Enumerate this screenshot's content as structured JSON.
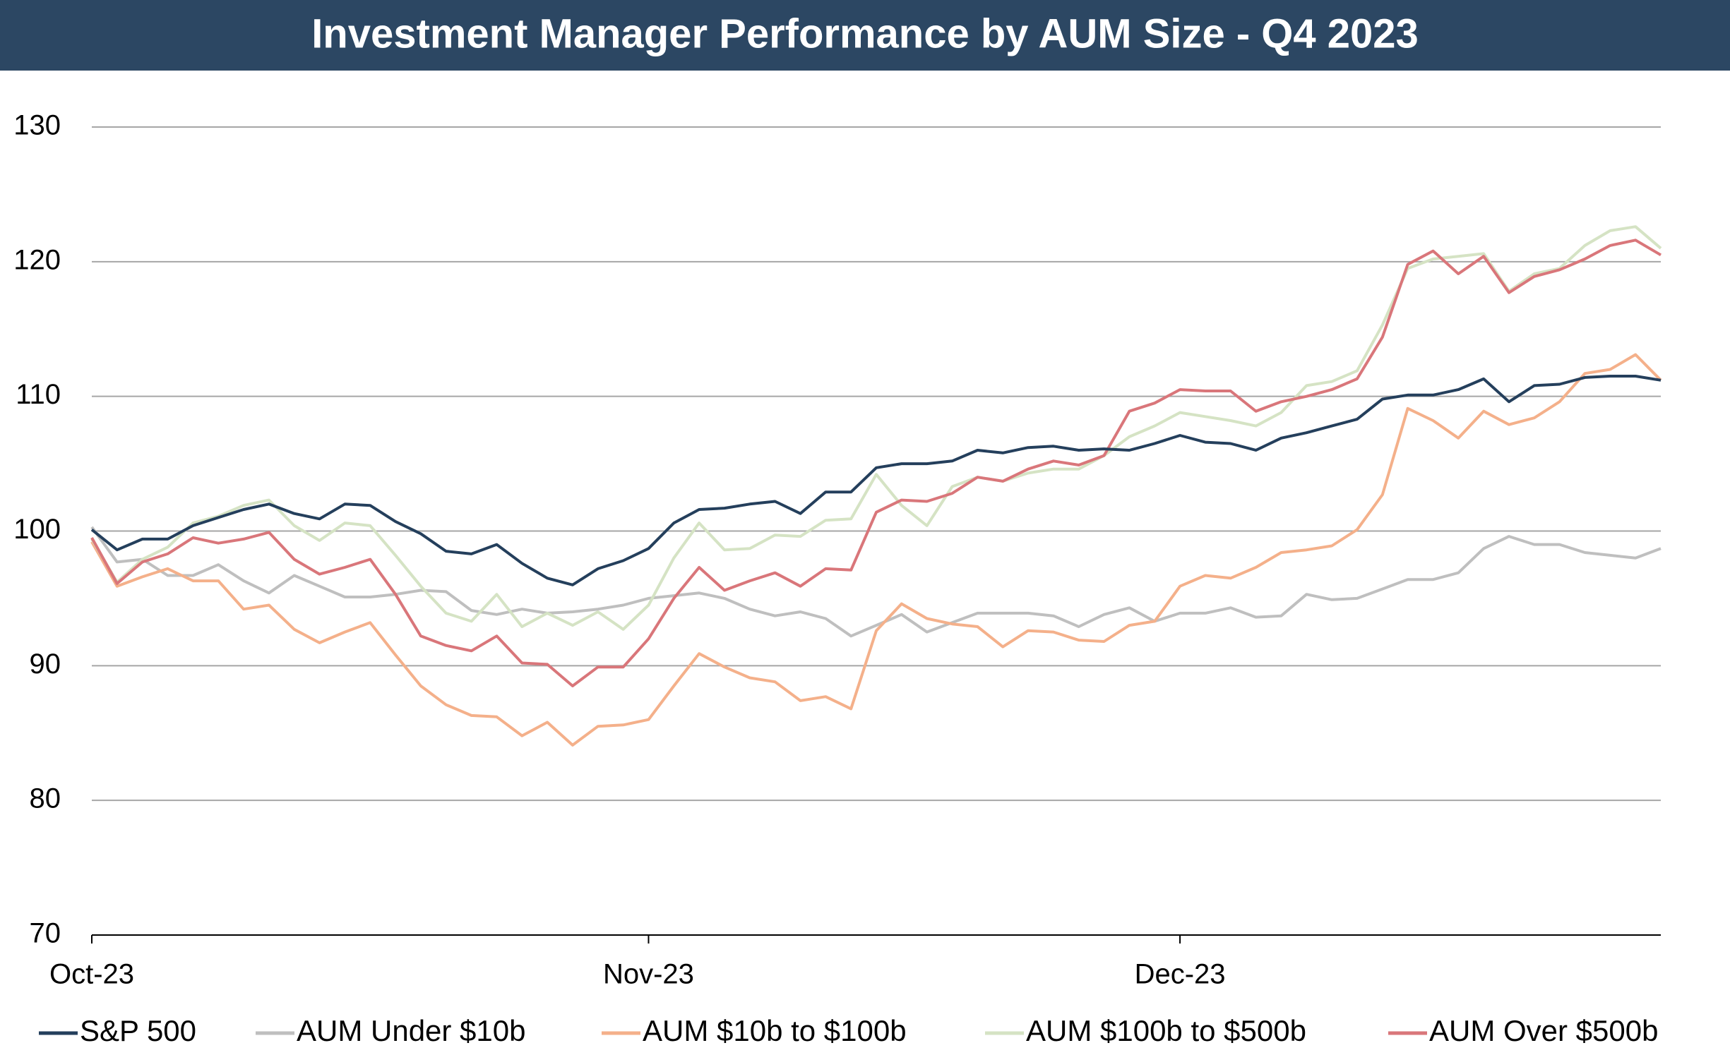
{
  "chart_data": {
    "type": "line",
    "title": "Investment Manager Performance by AUM Size - Q4 2023",
    "categories": [
      "Oct-23",
      null,
      null,
      null,
      null,
      null,
      null,
      null,
      null,
      null,
      null,
      null,
      null,
      null,
      null,
      null,
      null,
      null,
      null,
      null,
      null,
      null,
      "Nov-23",
      null,
      null,
      null,
      null,
      null,
      null,
      null,
      null,
      null,
      null,
      null,
      null,
      null,
      null,
      null,
      null,
      null,
      null,
      null,
      null,
      "Dec-23",
      null,
      null,
      null,
      null,
      null,
      null,
      null,
      null,
      null,
      null,
      null,
      null,
      null,
      null,
      null,
      null,
      null,
      null,
      null
    ],
    "series": [
      {
        "name": "S&P 500",
        "color": "#243f5c",
        "values": [
          100.1,
          98.6,
          99.4,
          99.4,
          100.4,
          101.0,
          101.6,
          102.0,
          101.3,
          100.9,
          102.0,
          101.9,
          100.7,
          99.8,
          98.5,
          98.3,
          99.0,
          97.6,
          96.5,
          96.0,
          97.2,
          97.8,
          98.7,
          100.6,
          101.6,
          101.7,
          102.0,
          102.2,
          101.3,
          102.9,
          102.9,
          104.7,
          105.0,
          105.0,
          105.2,
          106.0,
          105.8,
          106.2,
          106.3,
          106.0,
          106.1,
          106.0,
          106.5,
          107.1,
          106.6,
          106.5,
          106.0,
          106.9,
          107.3,
          107.8,
          108.3,
          109.8,
          110.1,
          110.1,
          110.5,
          111.3,
          109.6,
          110.8,
          110.9,
          111.4,
          111.5,
          111.5,
          111.2
        ]
      },
      {
        "name": "AUM Under $10b",
        "color": "#bfbfbf",
        "values": [
          100.3,
          97.7,
          97.9,
          96.7,
          96.7,
          97.5,
          96.3,
          95.4,
          96.7,
          95.9,
          95.1,
          95.1,
          95.3,
          95.6,
          95.5,
          94.1,
          93.8,
          94.2,
          93.9,
          94.0,
          94.2,
          94.5,
          95.0,
          95.2,
          95.4,
          95.0,
          94.2,
          93.7,
          94.0,
          93.5,
          92.2,
          93.0,
          93.8,
          92.5,
          93.2,
          93.9,
          93.9,
          93.9,
          93.7,
          92.9,
          93.8,
          94.3,
          93.3,
          93.9,
          93.9,
          94.3,
          93.6,
          93.7,
          95.3,
          94.9,
          95.0,
          95.7,
          96.4,
          96.4,
          96.9,
          98.7,
          99.6,
          99.0,
          99.0,
          98.4,
          98.2,
          98.0,
          98.7
        ]
      },
      {
        "name": "AUM $10b to $100b",
        "color": "#f4b08a",
        "values": [
          99.2,
          95.9,
          96.6,
          97.2,
          96.3,
          96.3,
          94.2,
          94.5,
          92.7,
          91.7,
          92.5,
          93.2,
          90.8,
          88.5,
          87.1,
          86.3,
          86.2,
          84.8,
          85.8,
          84.1,
          85.5,
          85.6,
          86.0,
          88.5,
          90.9,
          89.9,
          89.1,
          88.8,
          87.4,
          87.7,
          86.8,
          92.6,
          94.6,
          93.5,
          93.1,
          92.9,
          91.4,
          92.6,
          92.5,
          91.9,
          91.8,
          93.0,
          93.3,
          95.9,
          96.7,
          96.5,
          97.3,
          98.4,
          98.6,
          98.9,
          100.1,
          102.7,
          109.1,
          108.2,
          106.9,
          108.9,
          107.9,
          108.4,
          109.6,
          111.7,
          112.0,
          113.1,
          111.2
        ]
      },
      {
        "name": "AUM $100b to $500b",
        "color": "#d5e3c4",
        "values": [
          99.4,
          96.2,
          97.9,
          98.8,
          100.6,
          101.1,
          101.9,
          102.3,
          100.4,
          99.3,
          100.6,
          100.4,
          98.2,
          95.9,
          93.9,
          93.3,
          95.3,
          92.9,
          93.9,
          93.0,
          94.0,
          92.7,
          94.5,
          98.0,
          100.6,
          98.6,
          98.7,
          99.7,
          99.6,
          100.8,
          100.9,
          104.2,
          101.9,
          100.4,
          103.3,
          104.0,
          103.7,
          104.3,
          104.6,
          104.6,
          105.6,
          107.0,
          107.8,
          108.8,
          108.5,
          108.2,
          107.8,
          108.8,
          110.8,
          111.1,
          111.9,
          115.3,
          119.5,
          120.2,
          120.4,
          120.6,
          117.8,
          119.1,
          119.5,
          121.2,
          122.3,
          122.6,
          121.0
        ]
      },
      {
        "name": "AUM Over $500b",
        "color": "#d9767a",
        "values": [
          99.5,
          96.1,
          97.7,
          98.3,
          99.5,
          99.1,
          99.4,
          99.9,
          97.9,
          96.8,
          97.3,
          97.9,
          95.3,
          92.2,
          91.5,
          91.1,
          92.2,
          90.2,
          90.1,
          88.5,
          89.9,
          89.9,
          92.0,
          95.0,
          97.3,
          95.6,
          96.3,
          96.9,
          95.9,
          97.2,
          97.1,
          101.4,
          102.3,
          102.2,
          102.8,
          104.0,
          103.7,
          104.6,
          105.2,
          104.9,
          105.6,
          108.9,
          109.5,
          110.5,
          110.4,
          110.4,
          108.9,
          109.6,
          110.0,
          110.5,
          111.3,
          114.4,
          119.8,
          120.8,
          119.1,
          120.4,
          117.7,
          118.9,
          119.4,
          120.2,
          121.2,
          121.6,
          120.5
        ]
      }
    ],
    "ylim": [
      70,
      130
    ],
    "yticks": [
      70,
      80,
      90,
      100,
      110,
      120,
      130
    ],
    "grid": true,
    "legend": "bottom"
  }
}
